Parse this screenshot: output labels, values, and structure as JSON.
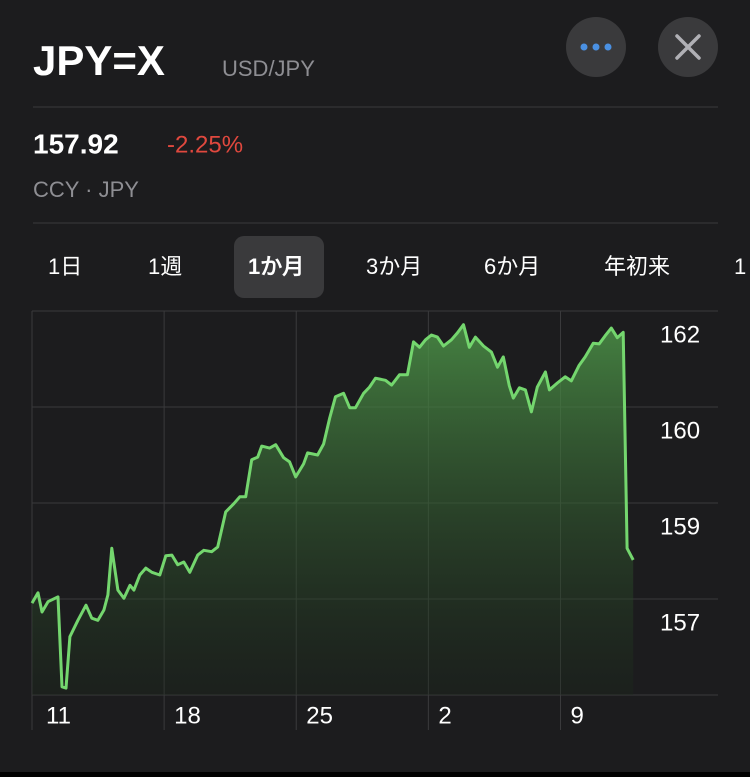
{
  "header": {
    "symbol": "JPY=X",
    "name": "USD/JPY"
  },
  "quote": {
    "price": "157.92",
    "change": "-2.25%",
    "exchange": "CCY · JPY"
  },
  "tabs": [
    "1日",
    "1週",
    "1か月",
    "3か月",
    "6か月",
    "年初来",
    "1"
  ],
  "selected_tab": 2,
  "chart_data": {
    "type": "line",
    "x": [
      0,
      0.32,
      0.53,
      0.85,
      1.38,
      1.59,
      1.8,
      2.01,
      2.43,
      2.86,
      3.17,
      3.49,
      3.81,
      4.02,
      4.23,
      4.55,
      4.87,
      5.19,
      5.4,
      5.71,
      6.03,
      6.35,
      6.77,
      7.09,
      7.41,
      7.72,
      8.04,
      8.36,
      8.78,
      9.1,
      9.52,
      9.84,
      10.26,
      10.69,
      11.01,
      11.32,
      11.64,
      11.96,
      12.17,
      12.59,
      12.91,
      13.33,
      13.65,
      13.97,
      14.39,
      14.6,
      15.13,
      15.45,
      15.77,
      16.08,
      16.51,
      16.83,
      17.14,
      17.57,
      17.88,
      18.2,
      18.73,
      19.05,
      19.47,
      19.89,
      20.21,
      20.53,
      20.85,
      21.16,
      21.48,
      21.8,
      22.22,
      22.54,
      22.86,
      23.17,
      23.49,
      23.92,
      24.34,
      24.66,
      24.97,
      25.29,
      25.5,
      25.82,
      26.14,
      26.46,
      26.77,
      27.2,
      27.41,
      27.83,
      28.25,
      28.57,
      28.99,
      29.31,
      29.74,
      30.05,
      30.37,
      30.69,
      31.01,
      31.32,
      31.53,
      31.85
    ],
    "series": [
      {
        "color": "#74d66e",
        "values": [
          157.34,
          157.49,
          157.21,
          157.36,
          157.43,
          156.12,
          156.1,
          156.85,
          157.09,
          157.31,
          157.12,
          157.09,
          157.24,
          157.46,
          158.14,
          157.53,
          157.41,
          157.6,
          157.53,
          157.75,
          157.85,
          157.79,
          157.75,
          158.03,
          158.04,
          157.9,
          157.94,
          157.79,
          158.04,
          158.11,
          158.09,
          158.16,
          158.67,
          158.79,
          158.89,
          158.89,
          159.43,
          159.47,
          159.63,
          159.6,
          159.65,
          159.46,
          159.4,
          159.18,
          159.37,
          159.53,
          159.5,
          159.66,
          160.04,
          160.35,
          160.4,
          160.19,
          160.19,
          160.4,
          160.49,
          160.62,
          160.59,
          160.52,
          160.67,
          160.67,
          161.15,
          161.07,
          161.18,
          161.25,
          161.22,
          161.09,
          161.18,
          161.28,
          161.4,
          161.07,
          161.22,
          161.09,
          161,
          160.78,
          160.93,
          160.51,
          160.33,
          160.48,
          160.45,
          160.13,
          160.49,
          160.71,
          160.45,
          160.55,
          160.64,
          160.58,
          160.81,
          160.93,
          161.13,
          161.12,
          161.24,
          161.35,
          161.21,
          161.29,
          158.14,
          157.97
        ]
      }
    ],
    "xlim": [
      0,
      32
    ],
    "xticks": [
      {
        "value": 0,
        "label": "11"
      },
      {
        "value": 7,
        "label": "18"
      },
      {
        "value": 14,
        "label": "25"
      },
      {
        "value": 21,
        "label": "2"
      },
      {
        "value": 28,
        "label": "9"
      }
    ],
    "ylim": [
      156,
      161.6
    ],
    "yticks": [
      {
        "value": 161.6,
        "label": "162"
      },
      {
        "value": 160.2,
        "label": "160"
      },
      {
        "value": 158.8,
        "label": "159"
      },
      {
        "value": 157.4,
        "label": "157"
      }
    ],
    "grid": true
  }
}
